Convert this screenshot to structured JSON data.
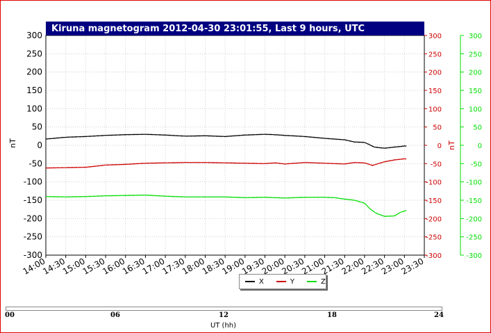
{
  "chart_data": {
    "type": "line",
    "title": "Kiruna magnetogram 2012-04-30 23:01:55, Last 9 hours, UTC",
    "ylabel_left": "nT",
    "ylabel_right": "nT",
    "ylim": [
      -300,
      300
    ],
    "y_ticks": [
      300,
      250,
      200,
      150,
      100,
      50,
      0,
      -50,
      -100,
      -150,
      -200,
      -250,
      -300
    ],
    "x_ticks": [
      "14:00",
      "14:30",
      "15:00",
      "15:30",
      "16:00",
      "16:30",
      "17:00",
      "17:30",
      "18:00",
      "18:30",
      "19:00",
      "19:30",
      "20:00",
      "20:30",
      "21:00",
      "21:30",
      "22:00",
      "22:30",
      "23:00",
      "23:30"
    ],
    "x_range_hours": [
      14.0,
      23.5
    ],
    "grid": true,
    "series": [
      {
        "name": "X",
        "color": "#000000",
        "points": [
          [
            14.0,
            17
          ],
          [
            14.5,
            22
          ],
          [
            15.0,
            24
          ],
          [
            15.5,
            27
          ],
          [
            16.0,
            29
          ],
          [
            16.5,
            30
          ],
          [
            17.0,
            28
          ],
          [
            17.5,
            25
          ],
          [
            18.0,
            26
          ],
          [
            18.5,
            24
          ],
          [
            19.0,
            28
          ],
          [
            19.5,
            30
          ],
          [
            19.75,
            29
          ],
          [
            20.0,
            27
          ],
          [
            20.5,
            24
          ],
          [
            21.0,
            19
          ],
          [
            21.5,
            15
          ],
          [
            21.75,
            9
          ],
          [
            22.0,
            8
          ],
          [
            22.25,
            -5
          ],
          [
            22.5,
            -8
          ],
          [
            22.75,
            -5
          ],
          [
            23.0,
            -2
          ],
          [
            23.05,
            -2
          ]
        ]
      },
      {
        "name": "Y",
        "color": "#cc0000",
        "points": [
          [
            14.0,
            -62
          ],
          [
            14.5,
            -61
          ],
          [
            15.0,
            -60
          ],
          [
            15.5,
            -54
          ],
          [
            16.0,
            -52
          ],
          [
            16.5,
            -49
          ],
          [
            17.0,
            -48
          ],
          [
            17.5,
            -47
          ],
          [
            18.0,
            -47
          ],
          [
            18.5,
            -48
          ],
          [
            19.0,
            -49
          ],
          [
            19.5,
            -50
          ],
          [
            19.75,
            -48
          ],
          [
            20.0,
            -51
          ],
          [
            20.5,
            -47
          ],
          [
            21.0,
            -49
          ],
          [
            21.5,
            -51
          ],
          [
            21.75,
            -47
          ],
          [
            22.0,
            -48
          ],
          [
            22.2,
            -55
          ],
          [
            22.35,
            -50
          ],
          [
            22.5,
            -45
          ],
          [
            22.75,
            -40
          ],
          [
            23.0,
            -37
          ],
          [
            23.05,
            -37
          ]
        ]
      },
      {
        "name": "Z",
        "color": "#00dd00",
        "points": [
          [
            14.0,
            -140
          ],
          [
            14.5,
            -141
          ],
          [
            15.0,
            -140
          ],
          [
            15.5,
            -138
          ],
          [
            16.0,
            -137
          ],
          [
            16.5,
            -136
          ],
          [
            17.0,
            -139
          ],
          [
            17.5,
            -141
          ],
          [
            18.0,
            -141
          ],
          [
            18.5,
            -141
          ],
          [
            19.0,
            -143
          ],
          [
            19.5,
            -142
          ],
          [
            20.0,
            -144
          ],
          [
            20.5,
            -142
          ],
          [
            21.0,
            -142
          ],
          [
            21.25,
            -143
          ],
          [
            21.5,
            -147
          ],
          [
            21.75,
            -150
          ],
          [
            22.0,
            -158
          ],
          [
            22.15,
            -175
          ],
          [
            22.3,
            -186
          ],
          [
            22.5,
            -194
          ],
          [
            22.75,
            -193
          ],
          [
            22.9,
            -183
          ],
          [
            23.05,
            -178
          ]
        ]
      }
    ]
  },
  "legend": {
    "items": [
      {
        "label": "X",
        "color": "#000000"
      },
      {
        "label": "Y",
        "color": "#cc0000"
      },
      {
        "label": "Z",
        "color": "#00dd00"
      }
    ]
  },
  "timeline": {
    "labels": [
      "00",
      "06",
      "12",
      "18",
      "24"
    ],
    "axis_label": "UT (hh)",
    "window_start_fraction": 0.0,
    "window_end_fraction": 0.0
  }
}
